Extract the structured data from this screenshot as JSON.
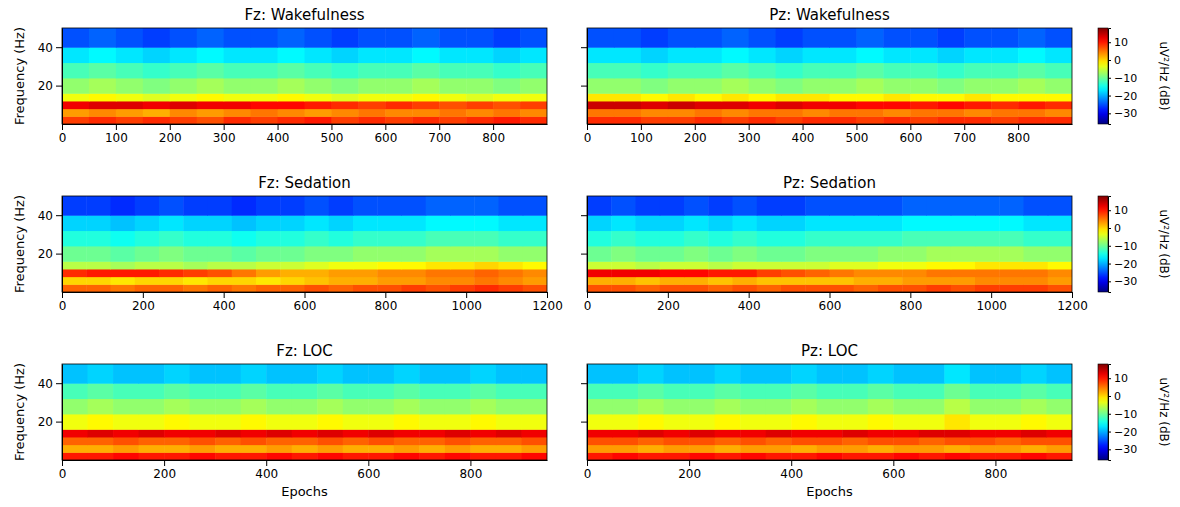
{
  "chart_data": [
    {
      "type": "heatmap",
      "title": "Fz: Wakefulness",
      "ylabel": "Frequency (Hz)",
      "color": "jet",
      "xlim": [
        0,
        900
      ],
      "ylim": [
        0,
        50
      ],
      "xticks": [
        0,
        100,
        200,
        300,
        400,
        500,
        600,
        700,
        800
      ],
      "yticks": [
        20,
        40
      ],
      "x": [
        0,
        50,
        100,
        150,
        200,
        250,
        300,
        350,
        400,
        450,
        500,
        550,
        600,
        650,
        700,
        750,
        800,
        850,
        900
      ],
      "y": [
        0,
        4,
        8,
        12,
        16,
        24,
        32,
        40,
        50
      ],
      "cells": [
        [
          8,
          9,
          8,
          9,
          8,
          7,
          9,
          8,
          9,
          10,
          8,
          9,
          8,
          9,
          8,
          9,
          10,
          9
        ],
        [
          3,
          4,
          3,
          2,
          4,
          3,
          4,
          5,
          4,
          3,
          4,
          5,
          4,
          4,
          5,
          4,
          5,
          4
        ],
        [
          12,
          13,
          13,
          12,
          13,
          12,
          12,
          11,
          11,
          10,
          9,
          8,
          9,
          8,
          7,
          8,
          7,
          8
        ],
        [
          -3,
          -2,
          -3,
          -4,
          -3,
          -2,
          -3,
          -3,
          -2,
          -3,
          -4,
          -3,
          -3,
          -2,
          -3,
          -4,
          -3,
          -3
        ],
        [
          -8,
          -7,
          -8,
          -9,
          -8,
          -7,
          -8,
          -8,
          -7,
          -8,
          -9,
          -8,
          -8,
          -7,
          -8,
          -8,
          -9,
          -8
        ],
        [
          -12,
          -11,
          -12,
          -13,
          -12,
          -11,
          -12,
          -12,
          -11,
          -12,
          -13,
          -12,
          -12,
          -11,
          -12,
          -12,
          -13,
          -12
        ],
        [
          -17,
          -16,
          -17,
          -18,
          -17,
          -16,
          -17,
          -17,
          -16,
          -17,
          -18,
          -17,
          -17,
          -16,
          -17,
          -17,
          -18,
          -17
        ],
        [
          -25,
          -24,
          -25,
          -26,
          -25,
          -24,
          -25,
          -25,
          -24,
          -25,
          -26,
          -25,
          -25,
          -24,
          -25,
          -25,
          -26,
          -25
        ]
      ]
    },
    {
      "type": "heatmap",
      "title": "Pz: Wakefulness",
      "color": "jet",
      "tick_labels": "x",
      "xlim": [
        0,
        900
      ],
      "ylim": [
        0,
        50
      ],
      "xticks": [
        0,
        100,
        200,
        300,
        400,
        500,
        600,
        700,
        800
      ],
      "yticks": [
        20,
        40
      ],
      "x": [
        0,
        50,
        100,
        150,
        200,
        250,
        300,
        350,
        400,
        450,
        500,
        550,
        600,
        650,
        700,
        750,
        800,
        850,
        900
      ],
      "y": [
        0,
        4,
        8,
        12,
        16,
        24,
        32,
        40,
        50
      ],
      "cells": [
        [
          9,
          9,
          8,
          8,
          9,
          8,
          9,
          8,
          9,
          9,
          8,
          9,
          8,
          9,
          9,
          8,
          9,
          9
        ],
        [
          5,
          5,
          4,
          4,
          5,
          4,
          5,
          5,
          4,
          5,
          5,
          4,
          5,
          5,
          4,
          5,
          5,
          4
        ],
        [
          14,
          14,
          13,
          14,
          13,
          13,
          12,
          13,
          12,
          12,
          11,
          11,
          10,
          11,
          10,
          9,
          10,
          9
        ],
        [
          -1,
          -1,
          -2,
          -1,
          -2,
          -1,
          -2,
          -1,
          -1,
          -2,
          -2,
          -1,
          -2,
          -2,
          -1,
          -2,
          -2,
          -2
        ],
        [
          -8,
          -8,
          -9,
          -8,
          -8,
          -7,
          -8,
          -9,
          -8,
          -8,
          -7,
          -8,
          -8,
          -9,
          -8,
          -8,
          -7,
          -8
        ],
        [
          -12,
          -12,
          -13,
          -12,
          -12,
          -11,
          -12,
          -13,
          -12,
          -12,
          -11,
          -12,
          -12,
          -13,
          -12,
          -12,
          -11,
          -12
        ],
        [
          -17,
          -17,
          -18,
          -17,
          -17,
          -16,
          -17,
          -18,
          -17,
          -17,
          -16,
          -17,
          -17,
          -18,
          -17,
          -17,
          -16,
          -17
        ],
        [
          -25,
          -25,
          -26,
          -25,
          -25,
          -24,
          -25,
          -26,
          -25,
          -25,
          -24,
          -25,
          -25,
          -26,
          -25,
          -25,
          -24,
          -25
        ]
      ],
      "color_label": "uV²/Hz (dB)",
      "color_range": [
        -36,
        18
      ],
      "color_ticks": [
        10,
        0,
        {
          "value": -10,
          "label": "−10"
        },
        {
          "value": -20,
          "label": "−20"
        },
        {
          "value": -30,
          "label": "−30"
        }
      ]
    },
    {
      "type": "heatmap",
      "title": "Fz: Sedation",
      "ylabel": "Frequency (Hz)",
      "color": "jet",
      "xlim": [
        0,
        1200
      ],
      "ylim": [
        0,
        50
      ],
      "xticks": [
        0,
        200,
        400,
        600,
        800,
        1000,
        1200
      ],
      "yticks": [
        20,
        40
      ],
      "x": [
        0,
        60,
        120,
        180,
        240,
        300,
        360,
        420,
        480,
        540,
        600,
        660,
        720,
        780,
        840,
        900,
        960,
        1020,
        1080,
        1140,
        1200
      ],
      "y": [
        0,
        4,
        8,
        12,
        16,
        24,
        32,
        40,
        50
      ],
      "cells": [
        [
          6,
          6,
          5,
          6,
          6,
          5,
          6,
          5,
          6,
          6,
          7,
          6,
          7,
          7,
          8,
          7,
          8,
          9,
          8,
          7
        ],
        [
          0,
          0,
          -1,
          0,
          0,
          -1,
          0,
          0,
          -1,
          0,
          1,
          2,
          2,
          3,
          3,
          4,
          4,
          5,
          4,
          3
        ],
        [
          9,
          10,
          10,
          10,
          9,
          8,
          7,
          5,
          3,
          2,
          2,
          3,
          3,
          4,
          4,
          5,
          5,
          6,
          5,
          4
        ],
        [
          -6,
          -6,
          -7,
          -6,
          -6,
          -7,
          -6,
          -6,
          -5,
          -5,
          -4,
          -3,
          -3,
          -2,
          -2,
          -1,
          -1,
          0,
          -1,
          -2
        ],
        [
          -10,
          -10,
          -11,
          -10,
          -9,
          -10,
          -10,
          -11,
          -10,
          -10,
          -9,
          -9,
          -8,
          -8,
          -8,
          -7,
          -7,
          -7,
          -8,
          -8
        ],
        [
          -14,
          -14,
          -15,
          -14,
          -13,
          -14,
          -14,
          -15,
          -14,
          -14,
          -13,
          -14,
          -13,
          -13,
          -13,
          -12,
          -12,
          -12,
          -13,
          -13
        ],
        [
          -18,
          -18,
          -19,
          -18,
          -17,
          -18,
          -18,
          -19,
          -18,
          -18,
          -17,
          -18,
          -17,
          -17,
          -17,
          -16,
          -16,
          -16,
          -17,
          -17
        ],
        [
          -26,
          -26,
          -27,
          -26,
          -25,
          -26,
          -26,
          -27,
          -26,
          -26,
          -25,
          -26,
          -25,
          -25,
          -25,
          -24,
          -24,
          -24,
          -25,
          -25
        ]
      ]
    },
    {
      "type": "heatmap",
      "title": "Pz: Sedation",
      "color": "jet",
      "tick_labels": "x",
      "xlim": [
        0,
        1200
      ],
      "ylim": [
        0,
        50
      ],
      "xticks": [
        0,
        200,
        400,
        600,
        800,
        1000,
        1200
      ],
      "yticks": [
        20,
        40
      ],
      "x": [
        0,
        60,
        120,
        180,
        240,
        300,
        360,
        420,
        480,
        540,
        600,
        660,
        720,
        780,
        840,
        900,
        960,
        1020,
        1080,
        1140,
        1200
      ],
      "y": [
        0,
        4,
        8,
        12,
        16,
        24,
        32,
        40,
        50
      ],
      "cells": [
        [
          7,
          7,
          6,
          7,
          7,
          6,
          7,
          6,
          7,
          7,
          7,
          6,
          7,
          7,
          8,
          7,
          8,
          8,
          8,
          7
        ],
        [
          2,
          2,
          1,
          2,
          2,
          1,
          2,
          1,
          1,
          1,
          1,
          2,
          2,
          3,
          3,
          3,
          4,
          4,
          4,
          3
        ],
        [
          12,
          12,
          12,
          11,
          11,
          10,
          10,
          8,
          7,
          6,
          5,
          4,
          4,
          4,
          5,
          5,
          5,
          5,
          5,
          4
        ],
        [
          -5,
          -5,
          -6,
          -5,
          -5,
          -6,
          -5,
          -5,
          -5,
          -5,
          -4,
          -4,
          -3,
          -3,
          -2,
          -2,
          -1,
          -1,
          -1,
          -2
        ],
        [
          -10,
          -9,
          -10,
          -10,
          -9,
          -10,
          -9,
          -10,
          -10,
          -9,
          -9,
          -9,
          -8,
          -8,
          -7,
          -7,
          -7,
          -7,
          -8,
          -8
        ],
        [
          -14,
          -13,
          -14,
          -14,
          -13,
          -14,
          -13,
          -14,
          -14,
          -13,
          -13,
          -13,
          -13,
          -12,
          -12,
          -12,
          -12,
          -12,
          -13,
          -13
        ],
        [
          -18,
          -17,
          -18,
          -18,
          -17,
          -18,
          -17,
          -18,
          -18,
          -17,
          -17,
          -17,
          -17,
          -16,
          -16,
          -16,
          -16,
          -16,
          -17,
          -17
        ],
        [
          -26,
          -25,
          -26,
          -26,
          -25,
          -26,
          -25,
          -26,
          -26,
          -25,
          -25,
          -25,
          -25,
          -24,
          -24,
          -24,
          -24,
          -24,
          -25,
          -25
        ]
      ],
      "color_label": "uV²/Hz (dB)",
      "color_range": [
        -36,
        18
      ],
      "color_ticks": [
        10,
        0,
        {
          "value": -10,
          "label": "−10"
        },
        {
          "value": -20,
          "label": "−20"
        },
        {
          "value": -30,
          "label": "−30"
        }
      ]
    },
    {
      "type": "heatmap",
      "title": "Fz: LOC",
      "xlabel": "Epochs",
      "ylabel": "Frequency (Hz)",
      "color": "jet",
      "xlim": [
        0,
        950
      ],
      "ylim": [
        0,
        50
      ],
      "xticks": [
        0,
        200,
        400,
        600,
        800
      ],
      "yticks": [
        20,
        40
      ],
      "x": [
        0,
        50,
        100,
        150,
        200,
        250,
        300,
        350,
        400,
        450,
        500,
        550,
        600,
        650,
        700,
        750,
        800,
        850,
        900,
        950
      ],
      "y": [
        0,
        4,
        8,
        12,
        16,
        24,
        32,
        40,
        50
      ],
      "cells": [
        [
          10,
          10,
          11,
          10,
          10,
          11,
          10,
          10,
          11,
          10,
          11,
          10,
          10,
          11,
          10,
          11,
          10,
          10,
          11
        ],
        [
          2,
          2,
          3,
          2,
          2,
          3,
          2,
          2,
          3,
          2,
          3,
          2,
          2,
          3,
          2,
          3,
          2,
          2,
          3
        ],
        [
          6,
          6,
          7,
          6,
          6,
          7,
          6,
          7,
          6,
          6,
          7,
          6,
          7,
          6,
          6,
          7,
          6,
          6,
          7
        ],
        [
          12,
          13,
          12,
          13,
          12,
          12,
          13,
          12,
          13,
          12,
          13,
          12,
          13,
          12,
          12,
          13,
          12,
          13,
          12
        ],
        [
          -3,
          -2,
          -3,
          -3,
          -2,
          -3,
          -3,
          -2,
          -3,
          -3,
          -2,
          -3,
          -3,
          -2,
          -3,
          -3,
          -2,
          -3,
          -3
        ],
        [
          -8,
          -7,
          -8,
          -8,
          -7,
          -8,
          -8,
          -7,
          -8,
          -8,
          -7,
          -8,
          -8,
          -7,
          -8,
          -8,
          -7,
          -8,
          -8
        ],
        [
          -12,
          -11,
          -12,
          -12,
          -11,
          -12,
          -12,
          -11,
          -12,
          -12,
          -11,
          -12,
          -12,
          -11,
          -12,
          -12,
          -11,
          -12,
          -12
        ],
        [
          -19,
          -18,
          -19,
          -19,
          -18,
          -19,
          -19,
          -18,
          -19,
          -19,
          -18,
          -19,
          -19,
          -18,
          -19,
          -19,
          -18,
          -19,
          -19
        ]
      ]
    },
    {
      "type": "heatmap",
      "title": "Pz: LOC",
      "xlabel": "Epochs",
      "color": "jet",
      "tick_labels": "x",
      "xlim": [
        0,
        950
      ],
      "ylim": [
        0,
        50
      ],
      "xticks": [
        0,
        200,
        400,
        600,
        800
      ],
      "yticks": [
        20,
        40
      ],
      "x": [
        0,
        50,
        100,
        150,
        200,
        250,
        300,
        350,
        400,
        450,
        500,
        550,
        600,
        650,
        700,
        750,
        800,
        850,
        900,
        950
      ],
      "y": [
        0,
        4,
        8,
        12,
        16,
        24,
        32,
        40,
        50
      ],
      "cells": [
        [
          10,
          11,
          10,
          10,
          11,
          10,
          11,
          10,
          10,
          11,
          10,
          10,
          11,
          10,
          11,
          10,
          10,
          11,
          10
        ],
        [
          3,
          3,
          2,
          3,
          3,
          2,
          3,
          3,
          2,
          3,
          3,
          2,
          3,
          3,
          2,
          3,
          3,
          2,
          3
        ],
        [
          7,
          7,
          6,
          7,
          7,
          6,
          7,
          6,
          7,
          7,
          6,
          7,
          7,
          6,
          7,
          7,
          6,
          7,
          7
        ],
        [
          12,
          12,
          13,
          12,
          13,
          12,
          12,
          13,
          12,
          12,
          13,
          12,
          12,
          13,
          13,
          12,
          12,
          13,
          12
        ],
        [
          -3,
          -3,
          -2,
          -3,
          -3,
          -2,
          -3,
          -3,
          -2,
          -3,
          -3,
          -2,
          -3,
          -3,
          -1,
          -3,
          -3,
          -2,
          -3
        ],
        [
          -8,
          -8,
          -7,
          -8,
          -8,
          -7,
          -8,
          -8,
          -7,
          -8,
          -8,
          -7,
          -8,
          -8,
          -6,
          -8,
          -8,
          -7,
          -8
        ],
        [
          -12,
          -12,
          -11,
          -12,
          -12,
          -11,
          -12,
          -12,
          -11,
          -12,
          -12,
          -11,
          -12,
          -12,
          -10,
          -12,
          -12,
          -11,
          -12
        ],
        [
          -19,
          -19,
          -18,
          -19,
          -19,
          -18,
          -19,
          -19,
          -18,
          -19,
          -19,
          -18,
          -19,
          -19,
          -17,
          -19,
          -19,
          -18,
          -19
        ]
      ],
      "color_label": "uV²/Hz (dB)",
      "color_range": [
        -36,
        18
      ],
      "color_ticks": [
        10,
        0,
        {
          "value": -10,
          "label": "−10"
        },
        {
          "value": -20,
          "label": "−20"
        },
        {
          "value": -30,
          "label": "−30"
        }
      ]
    }
  ]
}
